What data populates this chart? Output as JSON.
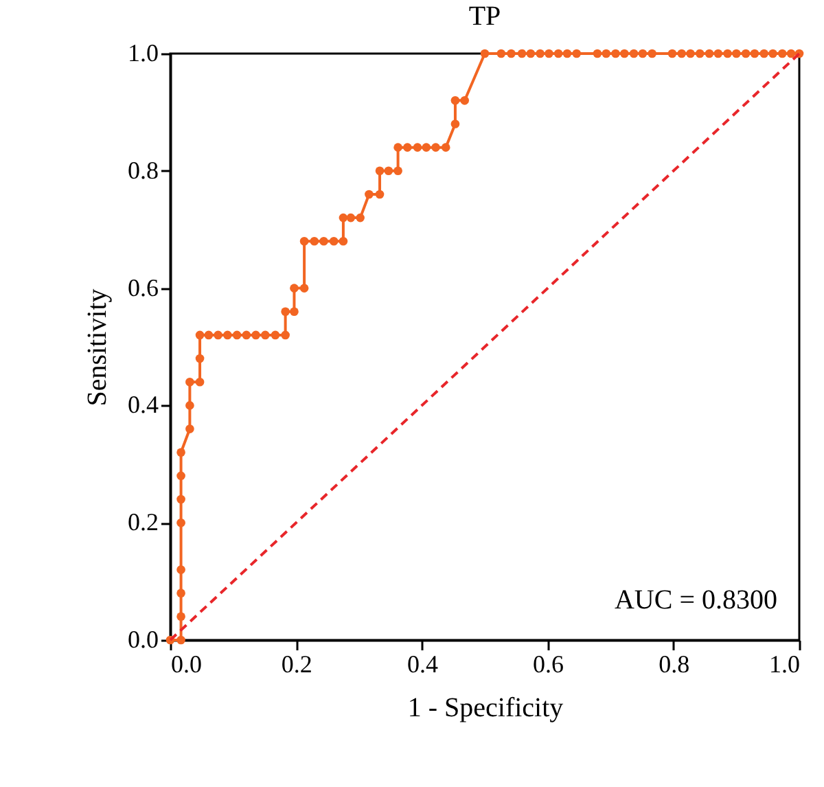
{
  "chart_data": {
    "type": "line",
    "title": "TP",
    "xlabel": "1 - Specificity",
    "ylabel": "Sensitivity",
    "xlim": [
      0,
      1
    ],
    "ylim": [
      0,
      1
    ],
    "xticks": [
      {
        "value": 0,
        "label": "0.0"
      },
      {
        "value": 0.2,
        "label": "0.2"
      },
      {
        "value": 0.4,
        "label": "0.4"
      },
      {
        "value": 0.6,
        "label": "0.6"
      },
      {
        "value": 0.8,
        "label": "0.8"
      },
      {
        "value": 1,
        "label": "1.0"
      }
    ],
    "yticks": [
      {
        "value": 0,
        "label": "0.0"
      },
      {
        "value": 0.2,
        "label": "0.2"
      },
      {
        "value": 0.4,
        "label": "0.4"
      },
      {
        "value": 0.6,
        "label": "0.6"
      },
      {
        "value": 0.8,
        "label": "0.8"
      },
      {
        "value": 1,
        "label": "1.0"
      }
    ],
    "grid": false,
    "legend": false,
    "annotations": [
      "AUC = 0.8300"
    ],
    "series": [
      {
        "type": "line",
        "color": "#f26522",
        "marker": "circle",
        "line_style": "solid",
        "x": [
          0,
          0.017,
          0.017,
          0.017,
          0.017,
          0.017,
          0.017,
          0.017,
          0.017,
          0.031,
          0.031,
          0.031,
          0.047,
          0.047,
          0.047,
          0.061,
          0.076,
          0.091,
          0.106,
          0.121,
          0.136,
          0.151,
          0.167,
          0.183,
          0.183,
          0.197,
          0.197,
          0.213,
          0.213,
          0.229,
          0.244,
          0.26,
          0.275,
          0.275,
          0.287,
          0.302,
          0.316,
          0.333,
          0.333,
          0.347,
          0.362,
          0.362,
          0.377,
          0.393,
          0.407,
          0.422,
          0.438,
          0.453,
          0.453,
          0.468,
          0.5,
          0.526,
          0.542,
          0.559,
          0.573,
          0.588,
          0.602,
          0.617,
          0.631,
          0.646,
          0.679,
          0.693,
          0.708,
          0.722,
          0.737,
          0.751,
          0.766,
          0.798,
          0.813,
          0.827,
          0.842,
          0.857,
          0.871,
          0.886,
          0.9,
          0.915,
          0.929,
          0.944,
          0.958,
          0.973,
          0.987,
          1.0
        ],
        "values": [
          0,
          0,
          0.04,
          0.08,
          0.12,
          0.2,
          0.24,
          0.28,
          0.32,
          0.36,
          0.4,
          0.44,
          0.44,
          0.48,
          0.52,
          0.52,
          0.52,
          0.52,
          0.52,
          0.52,
          0.52,
          0.52,
          0.52,
          0.52,
          0.56,
          0.56,
          0.6,
          0.6,
          0.68,
          0.68,
          0.68,
          0.68,
          0.68,
          0.72,
          0.72,
          0.72,
          0.76,
          0.76,
          0.8,
          0.8,
          0.8,
          0.84,
          0.84,
          0.84,
          0.84,
          0.84,
          0.84,
          0.88,
          0.92,
          0.92,
          1,
          1,
          1,
          1,
          1,
          1,
          1,
          1,
          1,
          1,
          1,
          1,
          1,
          1,
          1,
          1,
          1,
          1,
          1,
          1,
          1,
          1,
          1,
          1,
          1,
          1,
          1,
          1,
          1,
          1,
          1,
          1
        ]
      },
      {
        "type": "line",
        "color": "#e8262a",
        "marker": "none",
        "line_style": "dashed",
        "x": [
          0,
          1
        ],
        "values": [
          0,
          1
        ]
      }
    ]
  }
}
